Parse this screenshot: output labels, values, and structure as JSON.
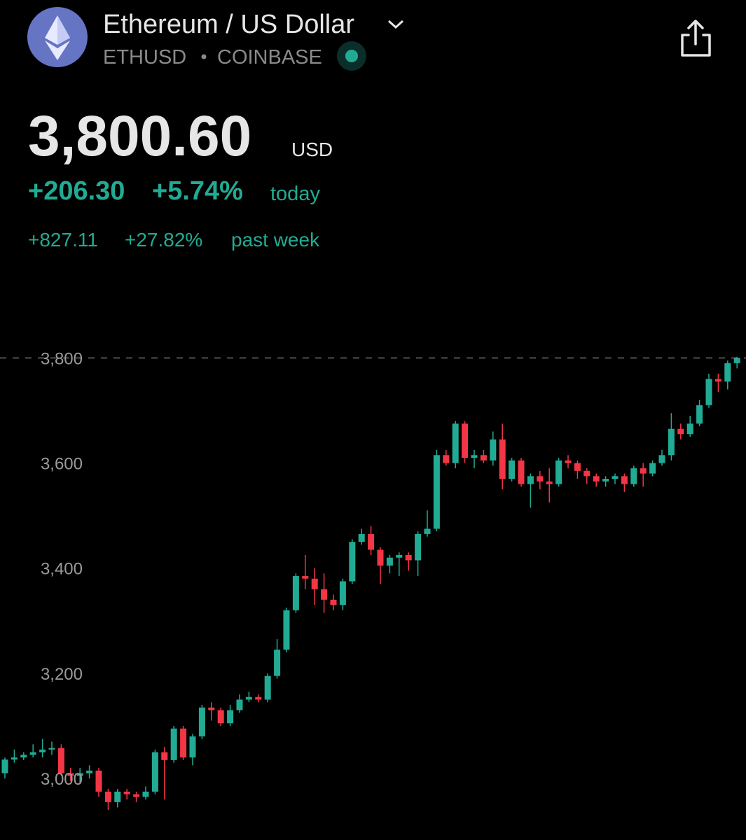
{
  "header": {
    "title": "Ethereum / US Dollar",
    "symbol": "ETHUSD",
    "exchange": "COINBASE"
  },
  "quote": {
    "price": "3,800.60",
    "currency": "USD",
    "change": "+206.30",
    "change_pct": "+5.74%",
    "period": "today",
    "week_change": "+827.11",
    "week_change_pct": "+27.82%",
    "week_period": "past week"
  },
  "chart_data": {
    "type": "candlestick",
    "up_color": "#22ab94",
    "down_color": "#f23645",
    "ylim": [
      2883,
      3855
    ],
    "yticks": [
      {
        "value": 3000,
        "label": "3,000"
      },
      {
        "value": 3200,
        "label": "3,200"
      },
      {
        "value": 3400,
        "label": "3,400"
      },
      {
        "value": 3600,
        "label": "3,600"
      },
      {
        "value": 3800,
        "label": "3,800"
      }
    ],
    "open": [
      3010,
      3036,
      3040,
      3045,
      3050,
      3055,
      3058,
      3010,
      3005,
      3010,
      3015,
      2975,
      2955,
      2975,
      2970,
      2965,
      2975,
      3050,
      3035,
      3095,
      3040,
      3080,
      3135,
      3130,
      3105,
      3130,
      3150,
      3155,
      3150,
      3195,
      3245,
      3320,
      3385,
      3380,
      3360,
      3340,
      3330,
      3375,
      3450,
      3465,
      3435,
      3405,
      3420,
      3425,
      3415,
      3465,
      3475,
      3615,
      3600,
      3675,
      3610,
      3615,
      3605,
      3645,
      3570,
      3605,
      3560,
      3575,
      3565,
      3560,
      3605,
      3600,
      3585,
      3575,
      3565,
      3570,
      3575,
      3560,
      3590,
      3580,
      3600,
      3615,
      3665,
      3655,
      3675,
      3710,
      3760,
      3755,
      3790
    ],
    "high": [
      3040,
      3055,
      3050,
      3065,
      3075,
      3070,
      3065,
      3020,
      3020,
      3025,
      3020,
      2980,
      2980,
      2980,
      2975,
      2985,
      3055,
      3060,
      3100,
      3100,
      3085,
      3140,
      3145,
      3135,
      3140,
      3160,
      3165,
      3160,
      3200,
      3265,
      3325,
      3390,
      3425,
      3400,
      3390,
      3350,
      3380,
      3455,
      3475,
      3480,
      3440,
      3425,
      3430,
      3430,
      3470,
      3510,
      3625,
      3625,
      3680,
      3680,
      3625,
      3625,
      3660,
      3675,
      3610,
      3610,
      3580,
      3585,
      3590,
      3610,
      3615,
      3605,
      3590,
      3580,
      3575,
      3580,
      3580,
      3595,
      3600,
      3605,
      3625,
      3695,
      3675,
      3690,
      3720,
      3770,
      3770,
      3795,
      3802
    ],
    "low": [
      3000,
      3030,
      3035,
      3040,
      3040,
      3045,
      3005,
      2995,
      2990,
      3000,
      2965,
      2940,
      2945,
      2960,
      2955,
      2960,
      2970,
      2960,
      3030,
      3035,
      3025,
      3075,
      3110,
      3100,
      3100,
      3125,
      3145,
      3145,
      3145,
      3190,
      3240,
      3315,
      3360,
      3330,
      3315,
      3320,
      3320,
      3370,
      3445,
      3425,
      3370,
      3390,
      3385,
      3395,
      3385,
      3460,
      3470,
      3595,
      3590,
      3600,
      3590,
      3600,
      3595,
      3550,
      3565,
      3555,
      3515,
      3550,
      3525,
      3555,
      3590,
      3570,
      3560,
      3555,
      3555,
      3560,
      3545,
      3555,
      3555,
      3575,
      3595,
      3605,
      3645,
      3650,
      3670,
      3705,
      3735,
      3740,
      3780
    ],
    "close": [
      3036,
      3040,
      3045,
      3050,
      3055,
      3058,
      3010,
      3005,
      3010,
      3015,
      2975,
      2955,
      2975,
      2970,
      2965,
      2975,
      3050,
      3035,
      3095,
      3040,
      3080,
      3135,
      3130,
      3105,
      3130,
      3150,
      3155,
      3150,
      3195,
      3245,
      3320,
      3385,
      3380,
      3360,
      3340,
      3330,
      3375,
      3450,
      3465,
      3435,
      3405,
      3420,
      3425,
      3415,
      3465,
      3475,
      3615,
      3600,
      3675,
      3610,
      3615,
      3605,
      3645,
      3570,
      3605,
      3560,
      3575,
      3565,
      3560,
      3605,
      3600,
      3585,
      3575,
      3565,
      3570,
      3575,
      3560,
      3590,
      3580,
      3600,
      3615,
      3665,
      3655,
      3675,
      3710,
      3760,
      3755,
      3790,
      3800
    ]
  }
}
